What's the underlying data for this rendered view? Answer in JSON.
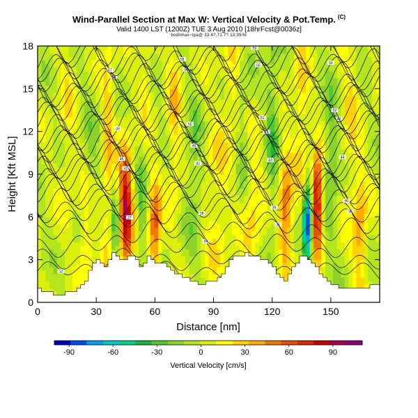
{
  "chart_data": {
    "type": "heatmap",
    "title": "Wind-Parallel Section at Max W: Vertical Velocity & Pot.Temp.",
    "title_badge": "(C)",
    "subtitle": "Valid 1400 LST (1200Z) TUE 3 Aug 2010 [18hrFcst@0036z]",
    "info_line": "bodilmax~tpa@ 33.4?,71.7? 13:35/hr",
    "xlabel": "Distance [nm]",
    "ylabel": "Height [Kft MSL]",
    "xlim": [
      0,
      175
    ],
    "ylim": [
      0,
      18
    ],
    "x_ticks": [
      0,
      30,
      60,
      90,
      120,
      150
    ],
    "y_ticks": [
      0,
      3,
      6,
      9,
      12,
      15,
      18
    ],
    "colorbar": {
      "label": "Vertical Velocity [cm/s]",
      "ticks": [
        -90,
        -60,
        -30,
        0,
        30,
        60,
        90
      ],
      "range": [
        -100,
        110
      ],
      "colors": [
        "#0000c8",
        "#0050f0",
        "#00a0f0",
        "#00c8c8",
        "#00d28c",
        "#1eb43c",
        "#50c832",
        "#8cd228",
        "#b4e61e",
        "#dcf00a",
        "#ffff00",
        "#ffd200",
        "#ffaa00",
        "#f07800",
        "#e65000",
        "#dc2800",
        "#c80000",
        "#aa0050",
        "#8c0078"
      ]
    },
    "terrain": [
      [
        0,
        1
      ],
      [
        10,
        0.5
      ],
      [
        20,
        0.9
      ],
      [
        25,
        1.5
      ],
      [
        28,
        2.5
      ],
      [
        31,
        3
      ],
      [
        35,
        2.6
      ],
      [
        39,
        3.4
      ],
      [
        44,
        2.8
      ],
      [
        48,
        3.5
      ],
      [
        53,
        2.5
      ],
      [
        57,
        3.2
      ],
      [
        60,
        2.9
      ],
      [
        63,
        2.8
      ],
      [
        70,
        2.2
      ],
      [
        76,
        1.7
      ],
      [
        84,
        1.3
      ],
      [
        90,
        1.5
      ],
      [
        95,
        2.0
      ],
      [
        100,
        3.1
      ],
      [
        106,
        3.4
      ],
      [
        114,
        3.2
      ],
      [
        120,
        2.7
      ],
      [
        124,
        1.9
      ],
      [
        127,
        1.6
      ],
      [
        130,
        2.2
      ],
      [
        136,
        3.5
      ],
      [
        141,
        2.8
      ],
      [
        146,
        1.8
      ],
      [
        150,
        1.4
      ],
      [
        157,
        1.0
      ],
      [
        163,
        0.9
      ],
      [
        170,
        1.1
      ],
      [
        175,
        1.3
      ]
    ],
    "updrafts": [
      [
        45,
        6.5,
        2.6,
        3.0,
        90
      ],
      [
        60,
        5.0,
        2.2,
        2.5,
        60
      ],
      [
        25,
        4.5,
        2.5,
        2.5,
        35
      ],
      [
        127,
        6.5,
        2.5,
        3.0,
        55
      ],
      [
        143,
        7.0,
        1.8,
        2.4,
        100
      ],
      [
        165,
        5.0,
        2.5,
        3.0,
        40
      ],
      [
        92,
        7.0,
        4.0,
        5.0,
        20
      ],
      [
        110,
        6.0,
        4.0,
        4.0,
        25
      ],
      [
        36,
        11.0,
        2.0,
        6.0,
        30
      ],
      [
        70,
        13.0,
        2.5,
        5.0,
        25
      ],
      [
        135,
        13.0,
        2.5,
        5.0,
        25
      ],
      [
        100,
        15.0,
        3.5,
        3.0,
        20
      ],
      [
        15,
        13.0,
        3.0,
        5.0,
        15
      ],
      [
        55,
        16.0,
        2.5,
        3.0,
        20
      ],
      [
        160,
        14.0,
        3.0,
        5.0,
        20
      ]
    ],
    "downdrafts": [
      [
        138,
        5.5,
        1.8,
        2.0,
        -95
      ],
      [
        40,
        5.0,
        2.0,
        2.0,
        -35
      ],
      [
        53,
        6.0,
        2.0,
        3.0,
        -25
      ],
      [
        120,
        12.0,
        2.5,
        5.0,
        -25
      ],
      [
        80,
        9.0,
        3.0,
        4.0,
        -20
      ],
      [
        150,
        10.0,
        2.5,
        4.0,
        -25
      ],
      [
        27,
        9.0,
        2.5,
        4.0,
        -15
      ],
      [
        105,
        12.0,
        2.5,
        4.0,
        -20
      ]
    ],
    "contours": [
      {
        "base": 2.2,
        "label": "32"
      },
      {
        "base": 3.0,
        "label": "33"
      },
      {
        "base": 4.0,
        "label": "34"
      },
      {
        "base": 5.0,
        "label": "35"
      },
      {
        "base": 5.8,
        "label": "36"
      },
      {
        "base": 6.5,
        "label": "37"
      },
      {
        "base": 7.1,
        "label": "38"
      },
      {
        "base": 7.7,
        "label": "39"
      },
      {
        "base": 8.2,
        "label": "40"
      },
      {
        "base": 8.7,
        "label": "41"
      },
      {
        "base": 9.2,
        "label": "42"
      },
      {
        "base": 9.7,
        "label": "43"
      },
      {
        "base": 10.2,
        "label": "44"
      },
      {
        "base": 10.7,
        "label": "45"
      },
      {
        "base": 11.2,
        "label": "46"
      },
      {
        "base": 11.7,
        "label": "47"
      },
      {
        "base": 12.2,
        "label": "48"
      },
      {
        "base": 12.7,
        "label": "49"
      },
      {
        "base": 13.2,
        "label": "50"
      },
      {
        "base": 13.7,
        "label": "51"
      },
      {
        "base": 14.2,
        "label": "52"
      },
      {
        "base": 14.7,
        "label": "53"
      },
      {
        "base": 15.2,
        "label": "54"
      },
      {
        "base": 15.7,
        "label": "55"
      },
      {
        "base": 16.2,
        "label": "56"
      },
      {
        "base": 16.7,
        "label": "57"
      },
      {
        "base": 17.2,
        "label": "58"
      },
      {
        "base": 17.7,
        "label": "59"
      }
    ]
  }
}
